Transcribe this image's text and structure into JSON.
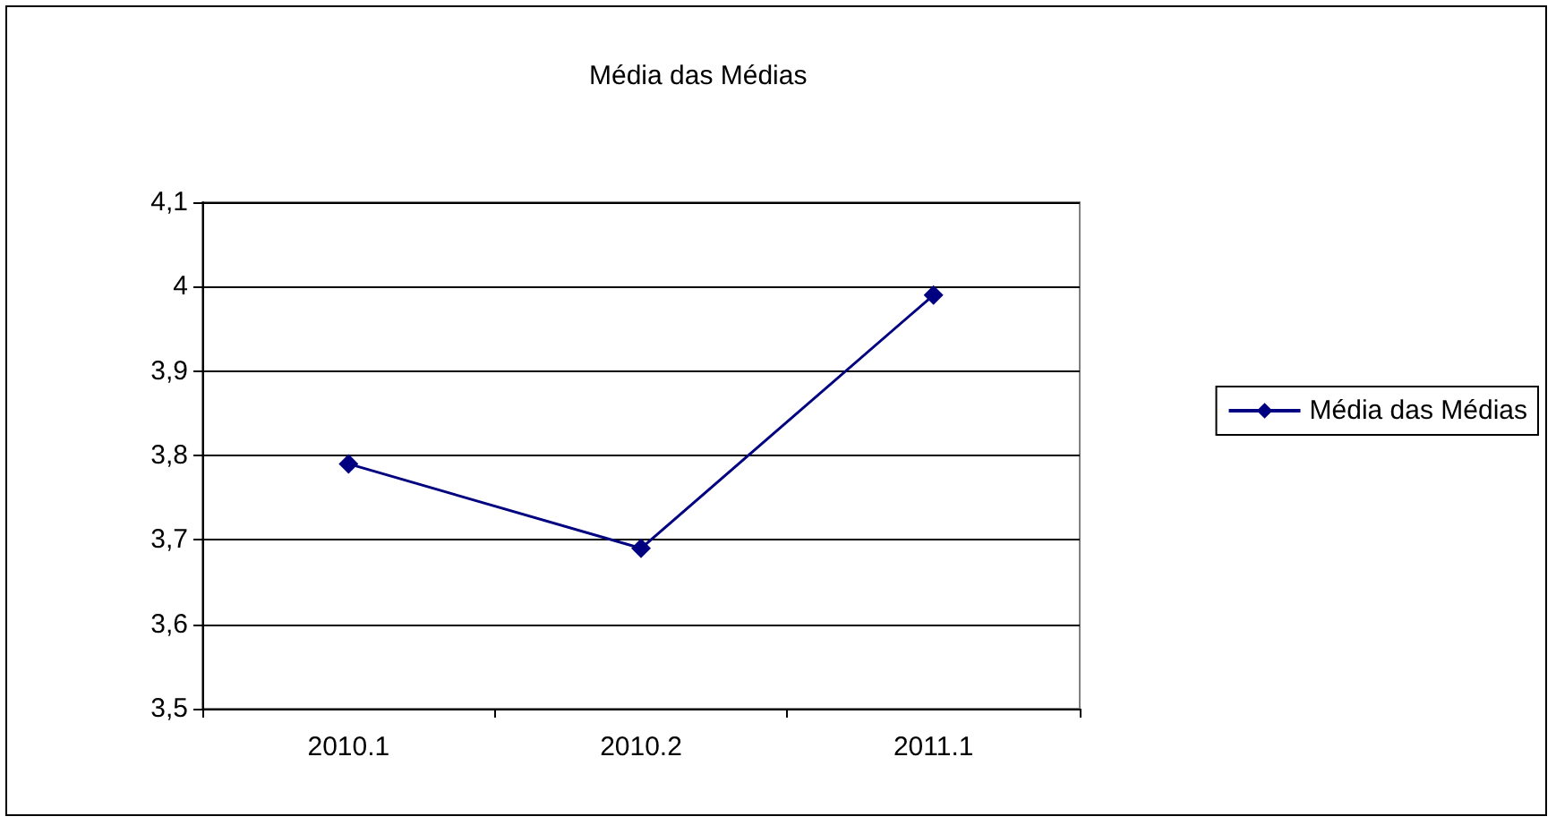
{
  "chart_data": {
    "type": "line",
    "title": "Média das Médias",
    "categories": [
      "2010.1",
      "2010.2",
      "2011.1"
    ],
    "series": [
      {
        "name": "Média das Médias",
        "color": "#000080",
        "values": [
          3.79,
          3.69,
          3.99
        ]
      }
    ],
    "ylim": [
      3.5,
      4.1
    ],
    "yticks": [
      {
        "value": 3.5,
        "label": "3,5"
      },
      {
        "value": 3.6,
        "label": "3,6"
      },
      {
        "value": 3.7,
        "label": "3,7"
      },
      {
        "value": 3.8,
        "label": "3,8"
      },
      {
        "value": 3.9,
        "label": "3,9"
      },
      4,
      {
        "value": 4.1,
        "label": "4,1"
      }
    ],
    "grid": "y",
    "legend": "right",
    "marker": "diamond",
    "line_style": "solid"
  }
}
